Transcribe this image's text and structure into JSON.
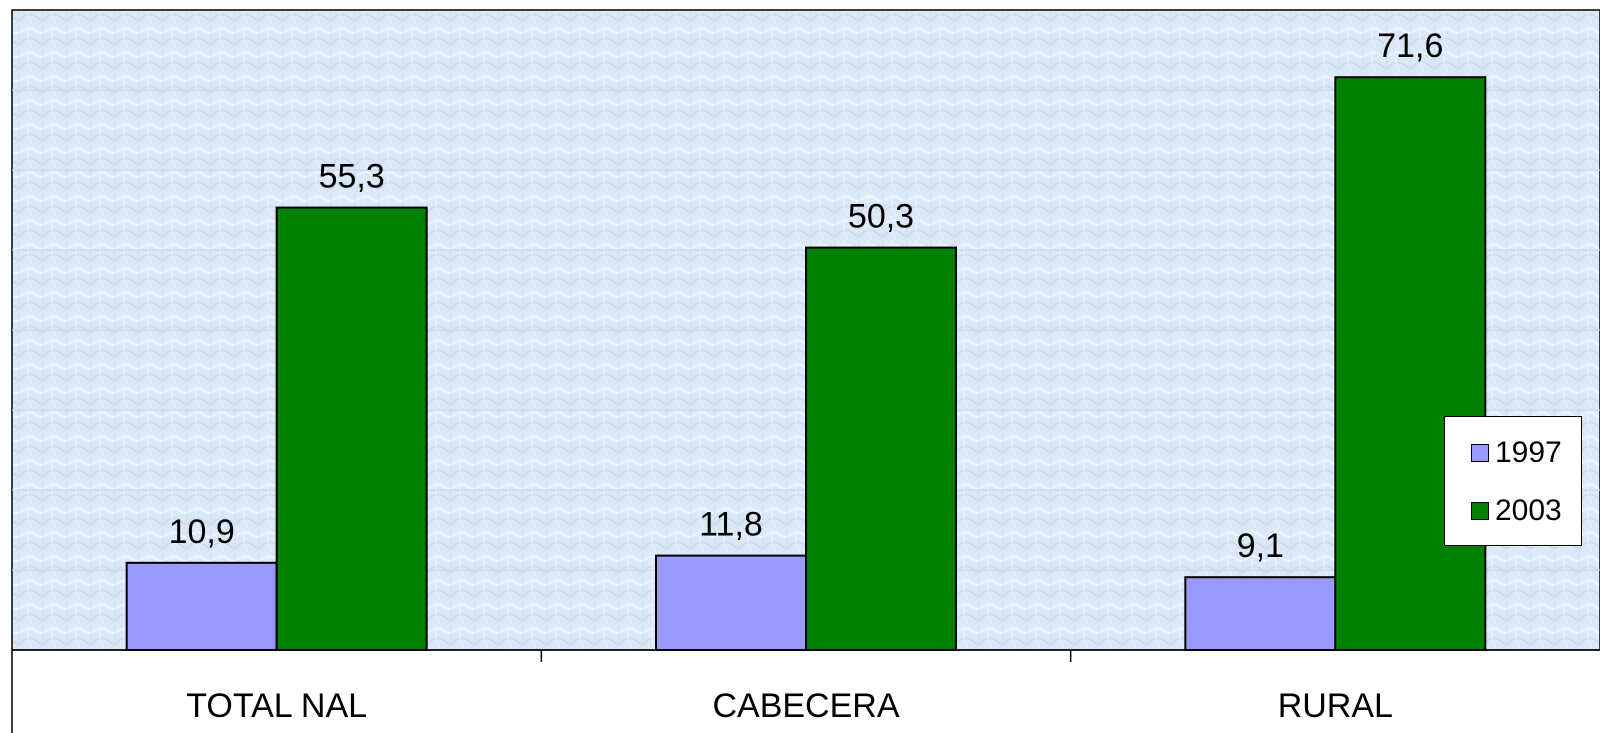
{
  "chart_data": {
    "type": "bar",
    "categories": [
      "TOTAL NAL",
      "CABECERA",
      "RURAL"
    ],
    "series": [
      {
        "name": "1997",
        "values": [
          10.9,
          11.8,
          9.1
        ],
        "labels": [
          "10,9",
          "11,8",
          "9,1"
        ],
        "color": "#9999ff"
      },
      {
        "name": "2003",
        "values": [
          55.3,
          50.3,
          71.6
        ],
        "labels": [
          "55,3",
          "50,3",
          "71,6"
        ],
        "color": "#008000"
      }
    ],
    "ylim": [
      0,
      80
    ],
    "grid": true,
    "legend_position": "right",
    "plot_background": "#dce9f7",
    "title": "",
    "xlabel": "",
    "ylabel": ""
  }
}
